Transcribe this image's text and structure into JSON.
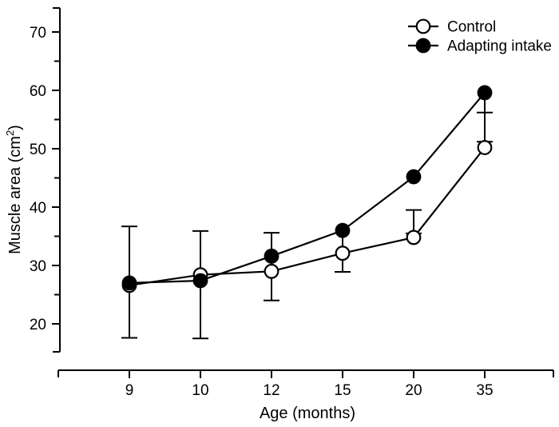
{
  "chart_data": {
    "type": "line",
    "title": "",
    "xlabel": "Age (months)",
    "ylabel": "Muscle area (cm²)",
    "ylabel_parts": {
      "pre": "Muscle area (cm",
      "sup": "2",
      "post": ")"
    },
    "categories": [
      "9",
      "10",
      "12",
      "15",
      "20",
      "35"
    ],
    "ylim": [
      15,
      75
    ],
    "y_ticks_major": [
      20,
      30,
      40,
      50,
      60,
      70
    ],
    "y_ticks_minor": [
      25,
      35,
      45,
      55,
      65
    ],
    "grid": false,
    "legend_position": "top-right",
    "series": [
      {
        "name": "Control",
        "marker": "open-circle",
        "values": [
          26.6,
          28.4,
          29.0,
          32.1,
          34.8,
          50.2
        ]
      },
      {
        "name": "Adapting intake",
        "marker": "filled-circle",
        "values": [
          27.0,
          27.4,
          31.6,
          36.0,
          45.2,
          59.6
        ]
      }
    ],
    "error_bars": [
      {
        "category": "9",
        "low": 17.6,
        "high": 36.7,
        "caps": [
          17.6,
          36.7
        ]
      },
      {
        "category": "10",
        "low": 17.5,
        "high": 35.9,
        "caps": [
          17.5,
          35.9
        ]
      },
      {
        "category": "12",
        "low": 24.0,
        "high": 35.6,
        "caps": [
          24.0,
          35.6
        ]
      },
      {
        "category": "15",
        "low": 28.9,
        "high": 36.0,
        "caps": [
          28.9
        ]
      },
      {
        "category": "20",
        "low": 34.8,
        "high": 39.5,
        "caps": [
          35.5,
          39.5
        ]
      },
      {
        "category": "35",
        "low": 50.2,
        "high": 59.6,
        "caps": [
          51.2,
          56.2
        ]
      }
    ],
    "colors": {
      "line": "#000000",
      "background": "#ffffff"
    }
  }
}
